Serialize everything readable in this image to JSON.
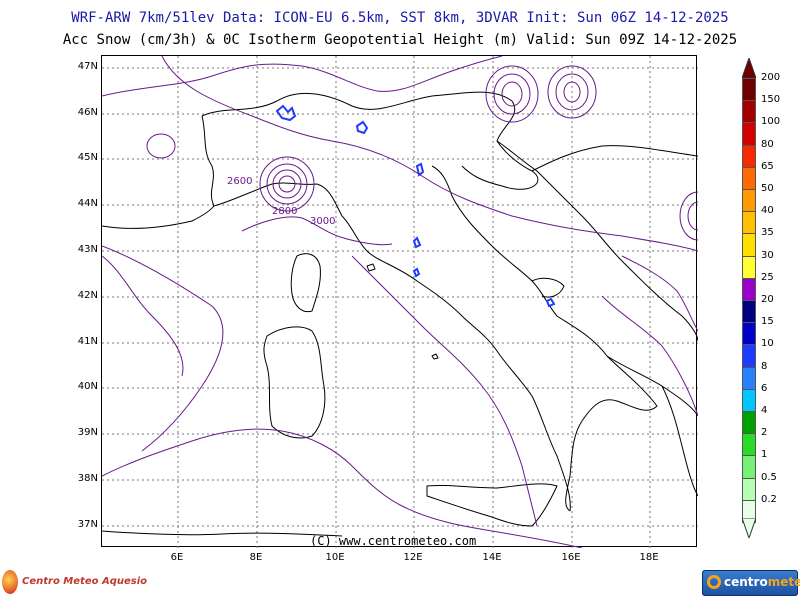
{
  "header": {
    "line1": "WRF-ARW 7km/51lev  Data: ICON-EU 6.5km, SST 8km, 3DVAR  Init: Sun 06Z 14-12-2025",
    "line2": "Acc Snow (cm/3h) & 0C Isotherm Geopotential Height (m)  Valid: Sun 09Z 14-12-2025"
  },
  "axes": {
    "lat_labels": [
      "47N",
      "46N",
      "45N",
      "44N",
      "43N",
      "42N",
      "41N",
      "40N",
      "39N",
      "38N",
      "37N"
    ],
    "lon_labels": [
      "6E",
      "8E",
      "10E",
      "12E",
      "14E",
      "16E",
      "18E"
    ]
  },
  "isotherm_labels": [
    "2600",
    "2800",
    "3000"
  ],
  "legend": {
    "levels": [
      {
        "label": "200",
        "color": "#6e0000"
      },
      {
        "label": "150",
        "color": "#a40000"
      },
      {
        "label": "100",
        "color": "#d40000"
      },
      {
        "label": "80",
        "color": "#f52a00"
      },
      {
        "label": "65",
        "color": "#ff6a00"
      },
      {
        "label": "50",
        "color": "#ff9a00"
      },
      {
        "label": "40",
        "color": "#ffc000"
      },
      {
        "label": "35",
        "color": "#ffe000"
      },
      {
        "label": "30",
        "color": "#ffff33"
      },
      {
        "label": "25",
        "color": "#9a00c8"
      },
      {
        "label": "20",
        "color": "#000080"
      },
      {
        "label": "15",
        "color": "#0000c8"
      },
      {
        "label": "10",
        "color": "#1e3cff"
      },
      {
        "label": "8",
        "color": "#2882ff"
      },
      {
        "label": "6",
        "color": "#00c8ff"
      },
      {
        "label": "4",
        "color": "#00a000"
      },
      {
        "label": "2",
        "color": "#28dc28"
      },
      {
        "label": "1",
        "color": "#78f078"
      },
      {
        "label": "0.5",
        "color": "#b4ffb4"
      },
      {
        "label": "0.2",
        "color": "#e6ffe6"
      }
    ]
  },
  "copyright": "(C) www.centrometeo.com",
  "logos": {
    "left": "Centro Meteo Aquesio",
    "right_prefix": "centro",
    "right_suffix": "meteo"
  },
  "colors": {
    "title": "#1a1aa6",
    "isotherm": "#6a1a8a",
    "snow_blue": "#1e3cff",
    "grid": "#666666"
  }
}
